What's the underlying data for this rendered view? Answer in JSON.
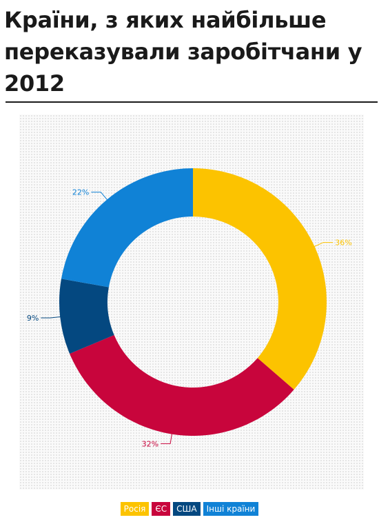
{
  "title": "Країни, з яких найбільше переказували заробітчани у 2012",
  "chart_data": {
    "type": "pie",
    "donut": true,
    "categories": [
      "Росія",
      "ЄС",
      "США",
      "Інші країни"
    ],
    "values": [
      36,
      32,
      9,
      22
    ],
    "labels": [
      "36%",
      "32%",
      "9%",
      "22%"
    ],
    "colors": [
      "#fcc300",
      "#c8053c",
      "#044880",
      "#1082d6"
    ],
    "legend_position": "bottom"
  }
}
